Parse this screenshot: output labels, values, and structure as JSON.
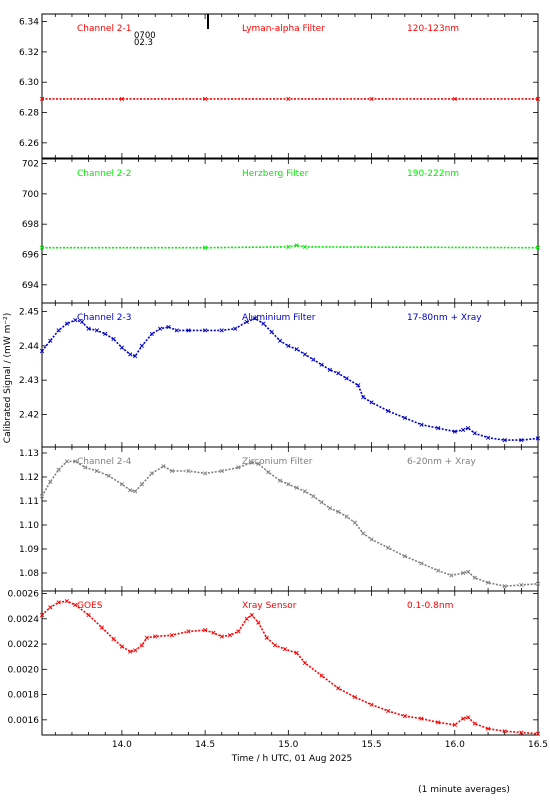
{
  "y_axis_label": "Calibrated Signal / (mW m⁻²)",
  "x_axis_label": "Time / h UTC, 01 Aug 2025",
  "footer_note": "(1 minute averages)",
  "panel1_extra": {
    "line1": "0700",
    "line2": "02.3"
  },
  "colors": {
    "red": "#ff0000",
    "green": "#00ee00",
    "blue": "#0000cc",
    "gray": "#808080",
    "axis": "#000000"
  },
  "chart_data": [
    {
      "type": "scatter",
      "channel": "Channel 2-1",
      "filter": "Lyman-alpha Filter",
      "band": "120-123nm",
      "color": "#ff0000",
      "ylim": [
        6.25,
        6.345
      ],
      "yticks": [
        "6.26",
        "6.28",
        "6.30",
        "6.32",
        "6.34"
      ],
      "yticks_values": [
        6.26,
        6.28,
        6.3,
        6.32,
        6.34
      ],
      "x_range": [
        13.52,
        16.5
      ],
      "x_ticks": [
        "14.0",
        "14.5",
        "15.0",
        "15.5",
        "16.0",
        "16.5"
      ],
      "x_tick_values": [
        14.0,
        14.5,
        15.0,
        15.5,
        16.0,
        16.5
      ],
      "points": [
        [
          13.52,
          6.289
        ],
        [
          14.0,
          6.289
        ],
        [
          14.5,
          6.289
        ],
        [
          15.0,
          6.289
        ],
        [
          15.5,
          6.289
        ],
        [
          16.0,
          6.289
        ],
        [
          16.5,
          6.289
        ]
      ]
    },
    {
      "type": "scatter",
      "channel": "Channel 2-2",
      "filter": "Herzberg Filter",
      "band": "190-222nm",
      "color": "#00ee00",
      "ylim": [
        692.8,
        702.3
      ],
      "yticks": [
        "694",
        "696",
        "698",
        "700",
        "702"
      ],
      "yticks_values": [
        694,
        696,
        698,
        700,
        702
      ],
      "x_range": [
        13.52,
        16.5
      ],
      "points": [
        [
          13.52,
          696.45
        ],
        [
          14.5,
          696.45
        ],
        [
          15.0,
          696.5
        ],
        [
          15.05,
          696.6
        ],
        [
          15.1,
          696.5
        ],
        [
          16.5,
          696.45
        ]
      ]
    },
    {
      "type": "scatter",
      "channel": "Channel 2-3",
      "filter": "Aluminium Filter",
      "band": "17-80nm + Xray",
      "color": "#0000cc",
      "ylim": [
        2.4105,
        2.4525
      ],
      "yticks": [
        "2.42",
        "2.43",
        "2.44",
        "2.45"
      ],
      "yticks_values": [
        2.42,
        2.43,
        2.44,
        2.45
      ],
      "x_range": [
        13.52,
        16.5
      ],
      "points": [
        [
          13.52,
          2.4385
        ],
        [
          13.57,
          2.4415
        ],
        [
          13.62,
          2.4445
        ],
        [
          13.67,
          2.4465
        ],
        [
          13.72,
          2.4475
        ],
        [
          13.76,
          2.447
        ],
        [
          13.8,
          2.445
        ],
        [
          13.85,
          2.4445
        ],
        [
          13.9,
          2.4435
        ],
        [
          13.95,
          2.442
        ],
        [
          14.0,
          2.4395
        ],
        [
          14.05,
          2.4375
        ],
        [
          14.08,
          2.437
        ],
        [
          14.12,
          2.44
        ],
        [
          14.18,
          2.4435
        ],
        [
          14.23,
          2.445
        ],
        [
          14.28,
          2.4455
        ],
        [
          14.33,
          2.4445
        ],
        [
          14.4,
          2.4445
        ],
        [
          14.5,
          2.4445
        ],
        [
          14.6,
          2.4445
        ],
        [
          14.68,
          2.445
        ],
        [
          14.75,
          2.447
        ],
        [
          14.8,
          2.448
        ],
        [
          14.85,
          2.4465
        ],
        [
          14.9,
          2.444
        ],
        [
          14.95,
          2.4415
        ],
        [
          15.0,
          2.44
        ],
        [
          15.05,
          2.439
        ],
        [
          15.1,
          2.4375
        ],
        [
          15.15,
          2.436
        ],
        [
          15.2,
          2.4345
        ],
        [
          15.25,
          2.433
        ],
        [
          15.3,
          2.432
        ],
        [
          15.35,
          2.4305
        ],
        [
          15.42,
          2.4285
        ],
        [
          15.45,
          2.425
        ],
        [
          15.5,
          2.4235
        ],
        [
          15.6,
          2.421
        ],
        [
          15.7,
          2.419
        ],
        [
          15.8,
          2.417
        ],
        [
          15.9,
          2.416
        ],
        [
          16.0,
          2.415
        ],
        [
          16.05,
          2.4155
        ],
        [
          16.08,
          2.416
        ],
        [
          16.12,
          2.4145
        ],
        [
          16.2,
          2.4132
        ],
        [
          16.3,
          2.4125
        ],
        [
          16.4,
          2.4125
        ],
        [
          16.5,
          2.413
        ]
      ]
    },
    {
      "type": "scatter",
      "channel": "Channel 2-4",
      "filter": "Zirconium Filter",
      "band": "6-20nm + Xray",
      "color": "#808080",
      "ylim": [
        1.0725,
        1.1325
      ],
      "yticks": [
        "1.08",
        "1.09",
        "1.10",
        "1.11",
        "1.12",
        "1.13"
      ],
      "yticks_values": [
        1.08,
        1.09,
        1.1,
        1.11,
        1.12,
        1.13
      ],
      "x_range": [
        13.52,
        16.5
      ],
      "points": [
        [
          13.52,
          1.112
        ],
        [
          13.57,
          1.118
        ],
        [
          13.62,
          1.123
        ],
        [
          13.67,
          1.1265
        ],
        [
          13.72,
          1.1265
        ],
        [
          13.78,
          1.124
        ],
        [
          13.85,
          1.1225
        ],
        [
          13.92,
          1.1205
        ],
        [
          14.0,
          1.117
        ],
        [
          14.05,
          1.1145
        ],
        [
          14.08,
          1.114
        ],
        [
          14.12,
          1.117
        ],
        [
          14.18,
          1.1215
        ],
        [
          14.25,
          1.1245
        ],
        [
          14.3,
          1.1225
        ],
        [
          14.4,
          1.1225
        ],
        [
          14.5,
          1.1215
        ],
        [
          14.6,
          1.1225
        ],
        [
          14.7,
          1.124
        ],
        [
          14.78,
          1.126
        ],
        [
          14.82,
          1.1255
        ],
        [
          14.88,
          1.122
        ],
        [
          14.95,
          1.1185
        ],
        [
          15.0,
          1.117
        ],
        [
          15.05,
          1.1155
        ],
        [
          15.1,
          1.114
        ],
        [
          15.15,
          1.112
        ],
        [
          15.2,
          1.1095
        ],
        [
          15.25,
          1.107
        ],
        [
          15.3,
          1.1055
        ],
        [
          15.35,
          1.1035
        ],
        [
          15.4,
          1.101
        ],
        [
          15.45,
          1.0965
        ],
        [
          15.5,
          1.094
        ],
        [
          15.6,
          1.0905
        ],
        [
          15.7,
          1.087
        ],
        [
          15.8,
          1.084
        ],
        [
          15.9,
          1.081
        ],
        [
          15.98,
          1.079
        ],
        [
          16.05,
          1.08
        ],
        [
          16.08,
          1.0805
        ],
        [
          16.12,
          1.078
        ],
        [
          16.2,
          1.076
        ],
        [
          16.3,
          1.0745
        ],
        [
          16.4,
          1.075
        ],
        [
          16.5,
          1.0755
        ]
      ]
    },
    {
      "type": "scatter",
      "channel": "GOES",
      "filter": "Xray Sensor",
      "band": "0.1-0.8nm",
      "color": "#ff0000",
      "ylim": [
        0.00148,
        0.00262
      ],
      "yticks": [
        "0.0016",
        "0.0018",
        "0.0020",
        "0.0022",
        "0.0024",
        "0.0026"
      ],
      "yticks_values": [
        0.0016,
        0.0018,
        0.002,
        0.0022,
        0.0024,
        0.0026
      ],
      "x_range": [
        13.52,
        16.5
      ],
      "x_ticks": [
        "14.0",
        "14.5",
        "15.0",
        "15.5",
        "16.0",
        "16.5"
      ],
      "x_tick_values": [
        14.0,
        14.5,
        15.0,
        15.5,
        16.0,
        16.5
      ],
      "points": [
        [
          13.52,
          0.00243
        ],
        [
          13.57,
          0.00249
        ],
        [
          13.62,
          0.00253
        ],
        [
          13.67,
          0.00254
        ],
        [
          13.72,
          0.00251
        ],
        [
          13.8,
          0.00243
        ],
        [
          13.88,
          0.00233
        ],
        [
          13.95,
          0.00224
        ],
        [
          14.0,
          0.00218
        ],
        [
          14.05,
          0.00214
        ],
        [
          14.08,
          0.00215
        ],
        [
          14.12,
          0.00219
        ],
        [
          14.15,
          0.00225
        ],
        [
          14.2,
          0.00226
        ],
        [
          14.3,
          0.00227
        ],
        [
          14.4,
          0.0023
        ],
        [
          14.5,
          0.00231
        ],
        [
          14.55,
          0.00229
        ],
        [
          14.6,
          0.00226
        ],
        [
          14.65,
          0.00227
        ],
        [
          14.7,
          0.0023
        ],
        [
          14.75,
          0.0024
        ],
        [
          14.78,
          0.00243
        ],
        [
          14.82,
          0.00237
        ],
        [
          14.87,
          0.00225
        ],
        [
          14.92,
          0.00219
        ],
        [
          14.98,
          0.00216
        ],
        [
          15.05,
          0.00213
        ],
        [
          15.1,
          0.00205
        ],
        [
          15.2,
          0.00195
        ],
        [
          15.3,
          0.00185
        ],
        [
          15.4,
          0.00178
        ],
        [
          15.5,
          0.00172
        ],
        [
          15.6,
          0.00167
        ],
        [
          15.7,
          0.00163
        ],
        [
          15.8,
          0.00161
        ],
        [
          15.9,
          0.00158
        ],
        [
          16.0,
          0.00156
        ],
        [
          16.05,
          0.00161
        ],
        [
          16.08,
          0.00162
        ],
        [
          16.12,
          0.00157
        ],
        [
          16.2,
          0.00153
        ],
        [
          16.3,
          0.00151
        ],
        [
          16.4,
          0.0015
        ],
        [
          16.5,
          0.00149
        ]
      ]
    }
  ]
}
